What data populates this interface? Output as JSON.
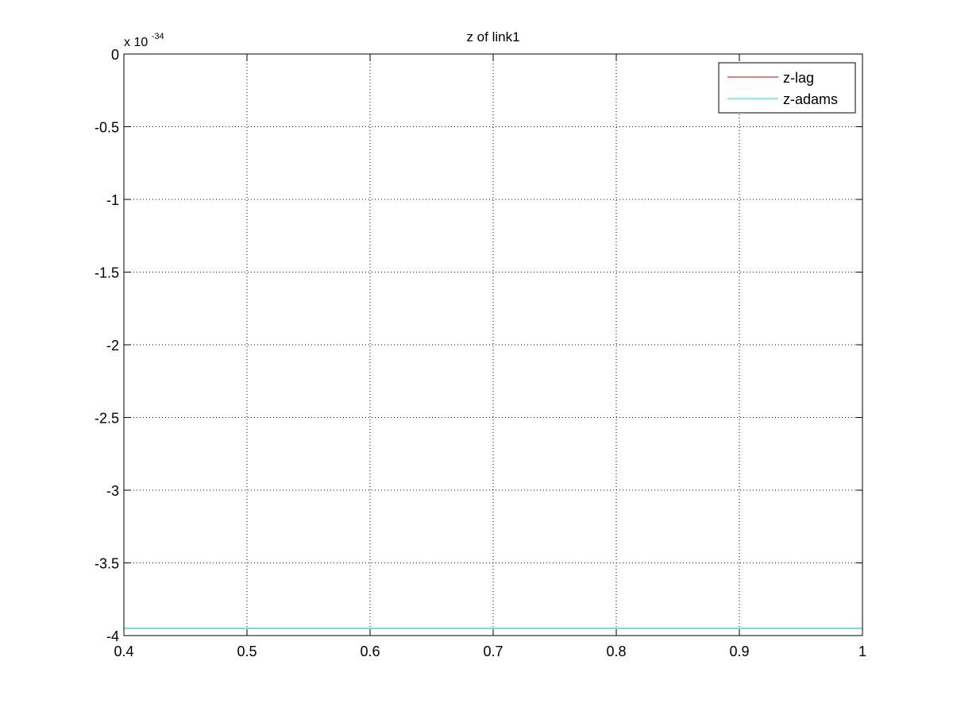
{
  "chart_data": {
    "type": "line",
    "title": "z of link1",
    "xlabel": "",
    "ylabel": "",
    "xlim": [
      0.4,
      1.0
    ],
    "ylim": [
      -4,
      0
    ],
    "y_exponent": {
      "prefix": "x 10",
      "power": "-34"
    },
    "x_ticks": [
      0.4,
      0.5,
      0.6,
      0.7,
      0.8,
      0.9,
      1.0
    ],
    "x_tick_labels": [
      "0.4",
      "0.5",
      "0.6",
      "0.7",
      "0.8",
      "0.9",
      "1"
    ],
    "y_ticks": [
      0,
      -0.5,
      -1,
      -1.5,
      -2,
      -2.5,
      -3,
      -3.5,
      -4
    ],
    "y_tick_labels": [
      "0",
      "-0.5",
      "-1",
      "-1.5",
      "-2",
      "-2.5",
      "-3",
      "-3.5",
      "-4"
    ],
    "grid": true,
    "grid_style": "dotted",
    "legend_position": "top-right",
    "series": [
      {
        "name": "z-lag",
        "color": "#cc0000",
        "x": [
          0.4,
          1.0
        ],
        "y": [
          -3.95,
          -3.95
        ]
      },
      {
        "name": "z-adams",
        "color": "#00e5e5",
        "x": [
          0.4,
          1.0
        ],
        "y": [
          -3.95,
          -3.95
        ]
      }
    ]
  }
}
